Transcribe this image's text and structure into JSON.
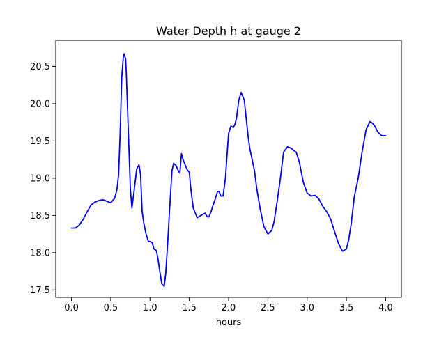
{
  "chart_data": {
    "type": "line",
    "title": "Water Depth h at gauge 2",
    "xlabel": "hours",
    "ylabel": "",
    "xlim": [
      -0.2,
      4.2
    ],
    "ylim": [
      17.4,
      20.85
    ],
    "xticks": [
      0.0,
      0.5,
      1.0,
      1.5,
      2.0,
      2.5,
      3.0,
      3.5,
      4.0
    ],
    "xtick_labels": [
      "0.0",
      "0.5",
      "1.0",
      "1.5",
      "2.0",
      "2.5",
      "3.0",
      "3.5",
      "4.0"
    ],
    "yticks": [
      17.5,
      18.0,
      18.5,
      19.0,
      19.5,
      20.0,
      20.5
    ],
    "ytick_labels": [
      "17.5",
      "18.0",
      "18.5",
      "19.0",
      "19.5",
      "20.0",
      "20.5"
    ],
    "grid": false,
    "series": [
      {
        "name": "",
        "color": "#0000ff",
        "x": [
          0.0,
          0.05,
          0.1,
          0.15,
          0.2,
          0.25,
          0.3,
          0.35,
          0.4,
          0.45,
          0.5,
          0.55,
          0.58,
          0.6,
          0.62,
          0.64,
          0.66,
          0.67,
          0.68,
          0.69,
          0.7,
          0.72,
          0.75,
          0.77,
          0.8,
          0.83,
          0.86,
          0.88,
          0.9,
          0.92,
          0.95,
          0.98,
          1.0,
          1.03,
          1.05,
          1.08,
          1.1,
          1.12,
          1.15,
          1.18,
          1.2,
          1.22,
          1.25,
          1.28,
          1.3,
          1.33,
          1.36,
          1.38,
          1.4,
          1.42,
          1.44,
          1.45,
          1.47,
          1.5,
          1.52,
          1.55,
          1.6,
          1.65,
          1.7,
          1.73,
          1.75,
          1.78,
          1.8,
          1.83,
          1.86,
          1.88,
          1.9,
          1.93,
          1.96,
          1.98,
          2.0,
          2.03,
          2.06,
          2.08,
          2.1,
          2.13,
          2.16,
          2.2,
          2.23,
          2.25,
          2.27,
          2.3,
          2.33,
          2.36,
          2.4,
          2.45,
          2.5,
          2.55,
          2.58,
          2.62,
          2.66,
          2.7,
          2.75,
          2.8,
          2.83,
          2.86,
          2.9,
          2.95,
          3.0,
          3.05,
          3.1,
          3.15,
          3.2,
          3.25,
          3.3,
          3.35,
          3.4,
          3.45,
          3.5,
          3.53,
          3.56,
          3.6,
          3.65,
          3.7,
          3.75,
          3.8,
          3.83,
          3.86,
          3.9,
          3.95,
          4.0
        ],
        "y": [
          18.33,
          18.33,
          18.37,
          18.45,
          18.55,
          18.64,
          18.68,
          18.7,
          18.71,
          18.69,
          18.67,
          18.73,
          18.85,
          19.05,
          19.6,
          20.35,
          20.62,
          20.67,
          20.63,
          20.6,
          20.35,
          19.75,
          18.85,
          18.6,
          18.85,
          19.12,
          19.18,
          19.05,
          18.55,
          18.4,
          18.25,
          18.15,
          18.15,
          18.13,
          18.05,
          18.03,
          17.93,
          17.78,
          17.58,
          17.55,
          17.72,
          18.05,
          18.6,
          19.1,
          19.2,
          19.17,
          19.1,
          19.07,
          19.33,
          19.25,
          19.2,
          19.17,
          19.12,
          19.08,
          18.85,
          18.6,
          18.47,
          18.5,
          18.53,
          18.48,
          18.48,
          18.56,
          18.63,
          18.72,
          18.82,
          18.82,
          18.76,
          18.76,
          19.0,
          19.3,
          19.6,
          19.7,
          19.68,
          19.72,
          19.8,
          20.05,
          20.15,
          20.05,
          19.75,
          19.55,
          19.4,
          19.25,
          19.1,
          18.85,
          18.6,
          18.35,
          18.25,
          18.3,
          18.42,
          18.7,
          19.0,
          19.35,
          19.42,
          19.4,
          19.37,
          19.35,
          19.22,
          18.95,
          18.8,
          18.76,
          18.77,
          18.72,
          18.62,
          18.55,
          18.45,
          18.28,
          18.12,
          18.02,
          18.05,
          18.18,
          18.38,
          18.75,
          19.0,
          19.35,
          19.65,
          19.76,
          19.74,
          19.7,
          19.62,
          19.57,
          19.57
        ]
      }
    ]
  }
}
